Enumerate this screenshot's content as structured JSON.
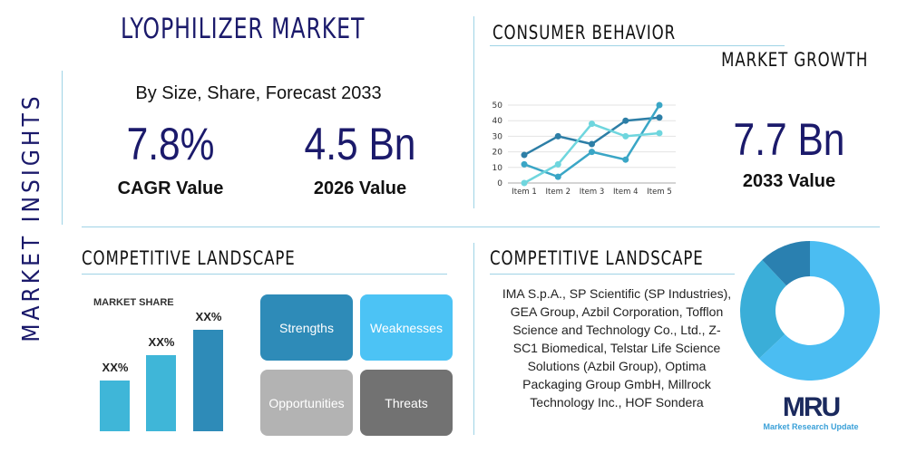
{
  "side_title": "MARKET INSIGHTS",
  "title": "LYOPHILIZER MARKET",
  "subtitle": "By Size, Share, Forecast 2033",
  "stats": [
    {
      "value": "7.8%",
      "label": "CAGR Value"
    },
    {
      "value": "4.5 Bn",
      "label": "2026 Value"
    },
    {
      "value": "7.7 Bn",
      "label": "2033 Value"
    }
  ],
  "consumer": {
    "title": "CONSUMER BEHAVIOR",
    "subtitle": "MARKET GROWTH"
  },
  "competitive_left": {
    "title": "COMPETITIVE LANDSCAPE"
  },
  "competitive_right": {
    "title": "COMPETITIVE LANDSCAPE",
    "lines": [
      "IMA S.p.A., SP Scientific (SP Industries),",
      "GEA Group, Azbil Corporation, Tofflon",
      "Science and Technology Co., Ltd., Z-",
      "SC1 Biomedical, Telstar Life Science",
      "Solutions (Azbil Group), Optima",
      "Packaging Group GmbH, Millrock",
      "Technology Inc., HOF Sondera"
    ]
  },
  "swot": [
    {
      "label": "Strengths",
      "color": "#2e8bb8"
    },
    {
      "label": "Weaknesses",
      "color": "#4cc3f5"
    },
    {
      "label": "Opportunities",
      "color": "#b3b3b3"
    },
    {
      "label": "Threats",
      "color": "#727272"
    }
  ],
  "logo": {
    "mark": "MRU",
    "name": "Market Research Update"
  },
  "chart_data": [
    {
      "type": "line",
      "categories": [
        "Item 1",
        "Item 2",
        "Item 3",
        "Item 4",
        "Item 5"
      ],
      "ylim": [
        0,
        50
      ],
      "yticks": [
        "0",
        "10",
        "20",
        "30",
        "40",
        "50"
      ],
      "grid": true,
      "series": [
        {
          "values": [
            18,
            30,
            25,
            40,
            42
          ],
          "color": "#2d7ea6"
        },
        {
          "values": [
            12,
            4,
            20,
            15,
            50
          ],
          "color": "#3aa6c6"
        },
        {
          "values": [
            0,
            12,
            38,
            30,
            32
          ],
          "color": "#6fd6de"
        }
      ]
    },
    {
      "type": "bar",
      "title": "MARKET SHARE",
      "categories": [
        "",
        "",
        ""
      ],
      "values": [
        0.5,
        0.75,
        1.0
      ],
      "labels": [
        "XX%",
        "XX%",
        "XX%"
      ],
      "colors": [
        "#3fb6d8",
        "#3fb6d8",
        "#2e8bb8"
      ]
    },
    {
      "type": "pie",
      "donut": true,
      "values": [
        63,
        25,
        12
      ],
      "colors": [
        "#4bbdf2",
        "#3aaed8",
        "#2a80b0"
      ]
    }
  ]
}
